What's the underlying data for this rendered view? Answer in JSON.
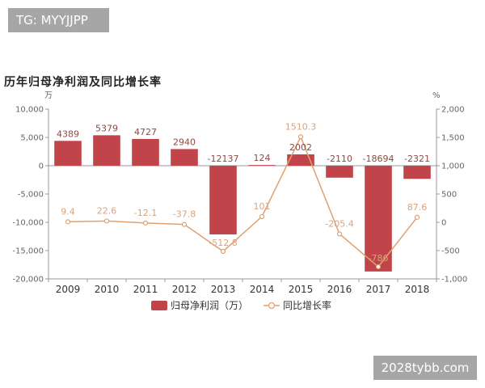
{
  "tag": "TG: MYYJJPP",
  "watermark": "2028tybb.com",
  "chart_data": {
    "type": "bar+line",
    "title": "历年归母净利润及同比增长率",
    "categories": [
      "2009",
      "2010",
      "2011",
      "2012",
      "2013",
      "2014",
      "2015",
      "2016",
      "2017",
      "2018"
    ],
    "series": [
      {
        "name": "归母净利润（万）",
        "type": "bar",
        "axis": "left",
        "values": [
          4389,
          5379,
          4727,
          2940,
          -12137,
          124,
          2002,
          -2110,
          -18694,
          -2321
        ],
        "labels": [
          "4389",
          "5379",
          "4727",
          "2940",
          "-12137",
          "124",
          "2002",
          "-2110",
          "-18694",
          "-2321"
        ],
        "color": "#c0444a"
      },
      {
        "name": "同比增长率",
        "type": "line",
        "axis": "right",
        "values": [
          9.4,
          22.6,
          -12.1,
          -37.8,
          -512.8,
          101,
          1510.3,
          -205.4,
          -786,
          87.6
        ],
        "labels": [
          "9.4",
          "22.6",
          "-12.1",
          "-37.8",
          "-512.8",
          "101",
          "1510.3",
          "-205.4",
          "-786",
          "87.6"
        ],
        "color": "#e0a070"
      }
    ],
    "y_left": {
      "unit": "万",
      "range": [
        -20000,
        10000
      ],
      "ticks": [
        10000,
        5000,
        0,
        -5000,
        -10000,
        -15000,
        -20000
      ],
      "tick_labels": [
        "10,000",
        "5,000",
        "0",
        "-5,000",
        "-10,000",
        "-15,000",
        "-20,000"
      ]
    },
    "y_right": {
      "unit": "%",
      "range": [
        -1000,
        2000
      ],
      "ticks": [
        2000,
        1500,
        1000,
        500,
        0,
        -500,
        -1000
      ],
      "tick_labels": [
        "2,000",
        "1,500",
        "1,000",
        "500",
        "0",
        "-500",
        "-1,000"
      ]
    },
    "grid": false,
    "legend_position": "bottom"
  }
}
